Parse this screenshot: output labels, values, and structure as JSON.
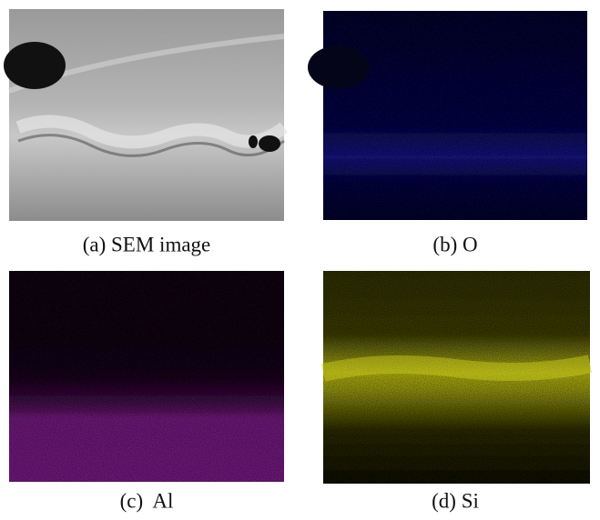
{
  "panels": [
    {
      "caption": "(a) SEM image"
    },
    {
      "caption": "(b) O"
    },
    {
      "caption": "(c)  Al"
    },
    {
      "caption": "(d) Si"
    }
  ]
}
